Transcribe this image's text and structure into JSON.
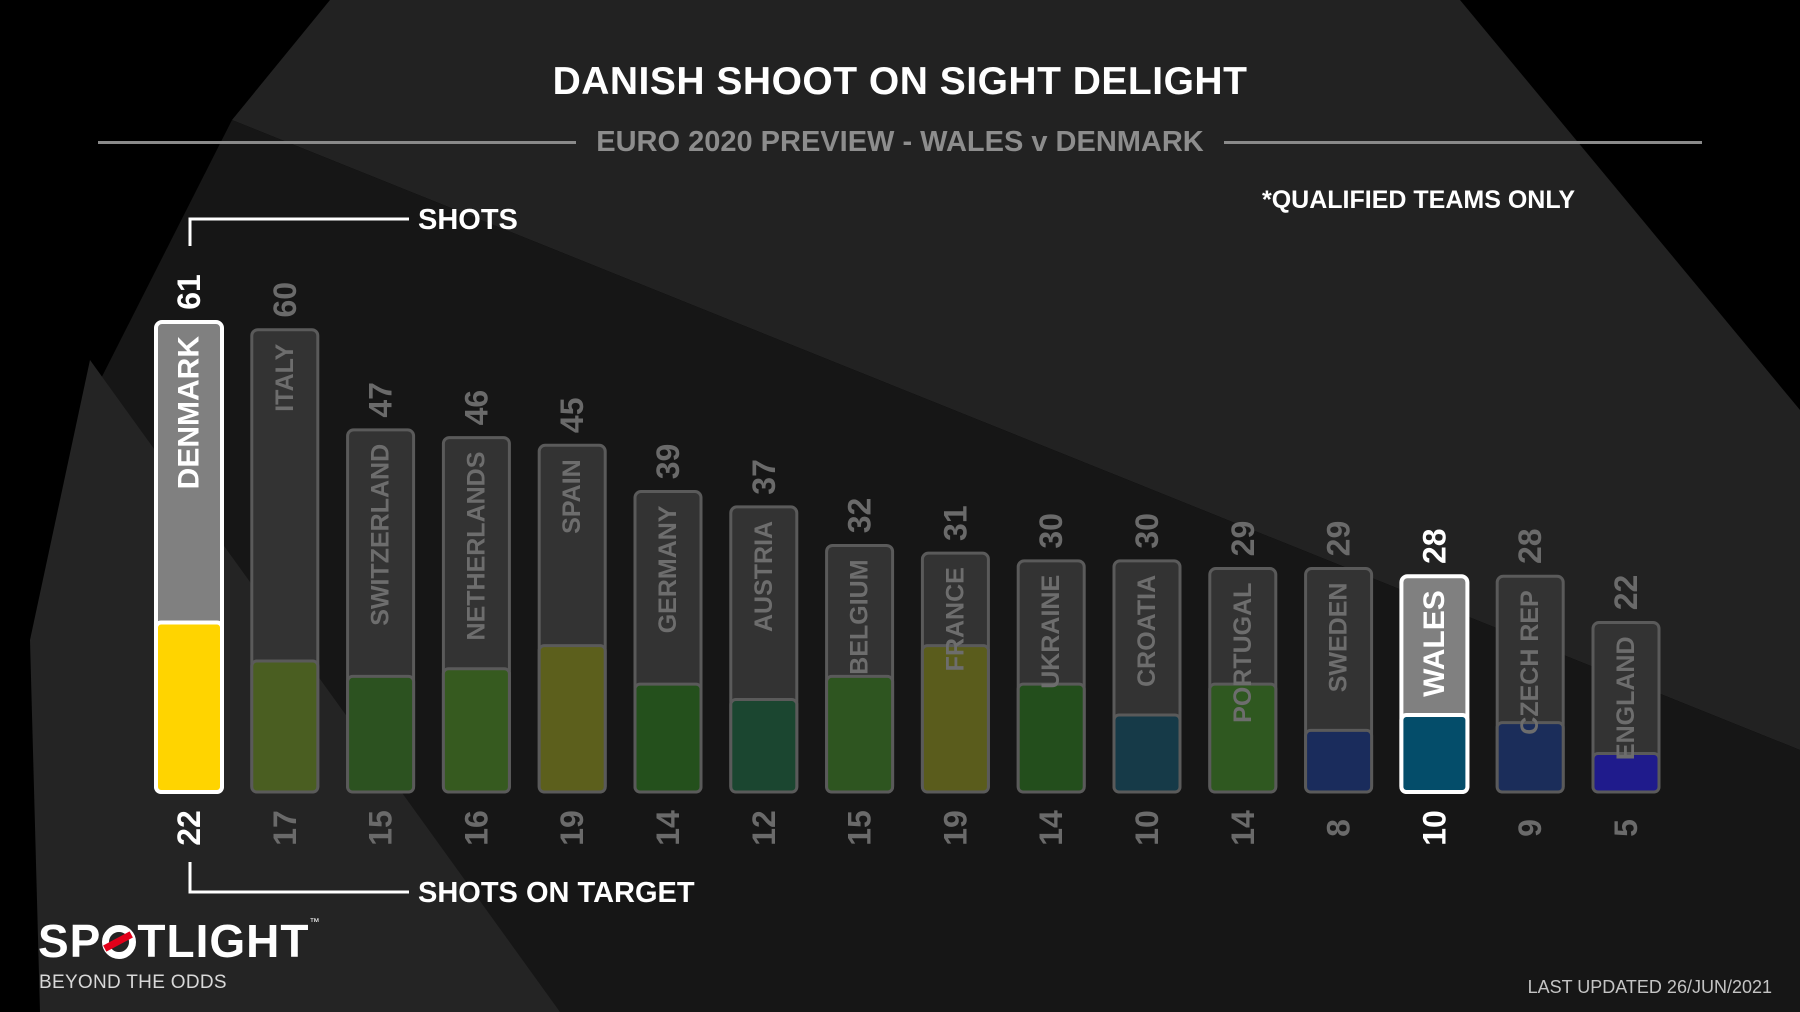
{
  "title": "DANISH SHOOT ON SIGHT DELIGHT",
  "subtitle": "EURO 2020 PREVIEW - WALES v DENMARK",
  "note": "*QUALIFIED TEAMS ONLY",
  "footer": "LAST UPDATED 26/JUN/2021",
  "logo": {
    "left": "SP",
    "right": "TLIGHT",
    "trademark": "™",
    "tagline": "BEYOND THE ODDS"
  },
  "chart_data": {
    "type": "bar",
    "categories": [
      "DENMARK",
      "ITALY",
      "SWITZERLAND",
      "NETHERLANDS",
      "SPAIN",
      "GERMANY",
      "AUSTRIA",
      "BELGIUM",
      "FRANCE",
      "UKRAINE",
      "CROATIA",
      "PORTUGAL",
      "SWEDEN",
      "WALES",
      "CZECH REP",
      "ENGLAND"
    ],
    "series": [
      {
        "name": "SHOTS",
        "values": [
          61,
          60,
          47,
          46,
          45,
          39,
          37,
          32,
          31,
          30,
          30,
          29,
          29,
          28,
          28,
          22
        ]
      },
      {
        "name": "SHOTS ON TARGET",
        "values": [
          22,
          17,
          15,
          16,
          19,
          14,
          12,
          15,
          19,
          14,
          10,
          14,
          8,
          10,
          9,
          5
        ]
      }
    ],
    "ylim": [
      0,
      61
    ],
    "highlight": [
      "DENMARK",
      "WALES"
    ],
    "target_colors": [
      "#ffd400",
      "#4a5e21",
      "#2c5220",
      "#365a1f",
      "#5c5f1c",
      "#24501c",
      "#1b4630",
      "#2e5520",
      "#5a5c1c",
      "#234e1c",
      "#163a48",
      "#2f5820",
      "#1a2c5c",
      "#044d6a",
      "#1b2d5a",
      "#1f1b8c"
    ],
    "shots_color": "#333333",
    "denmark_shots_color": "#808080",
    "wales_shots_color": "#808080"
  }
}
